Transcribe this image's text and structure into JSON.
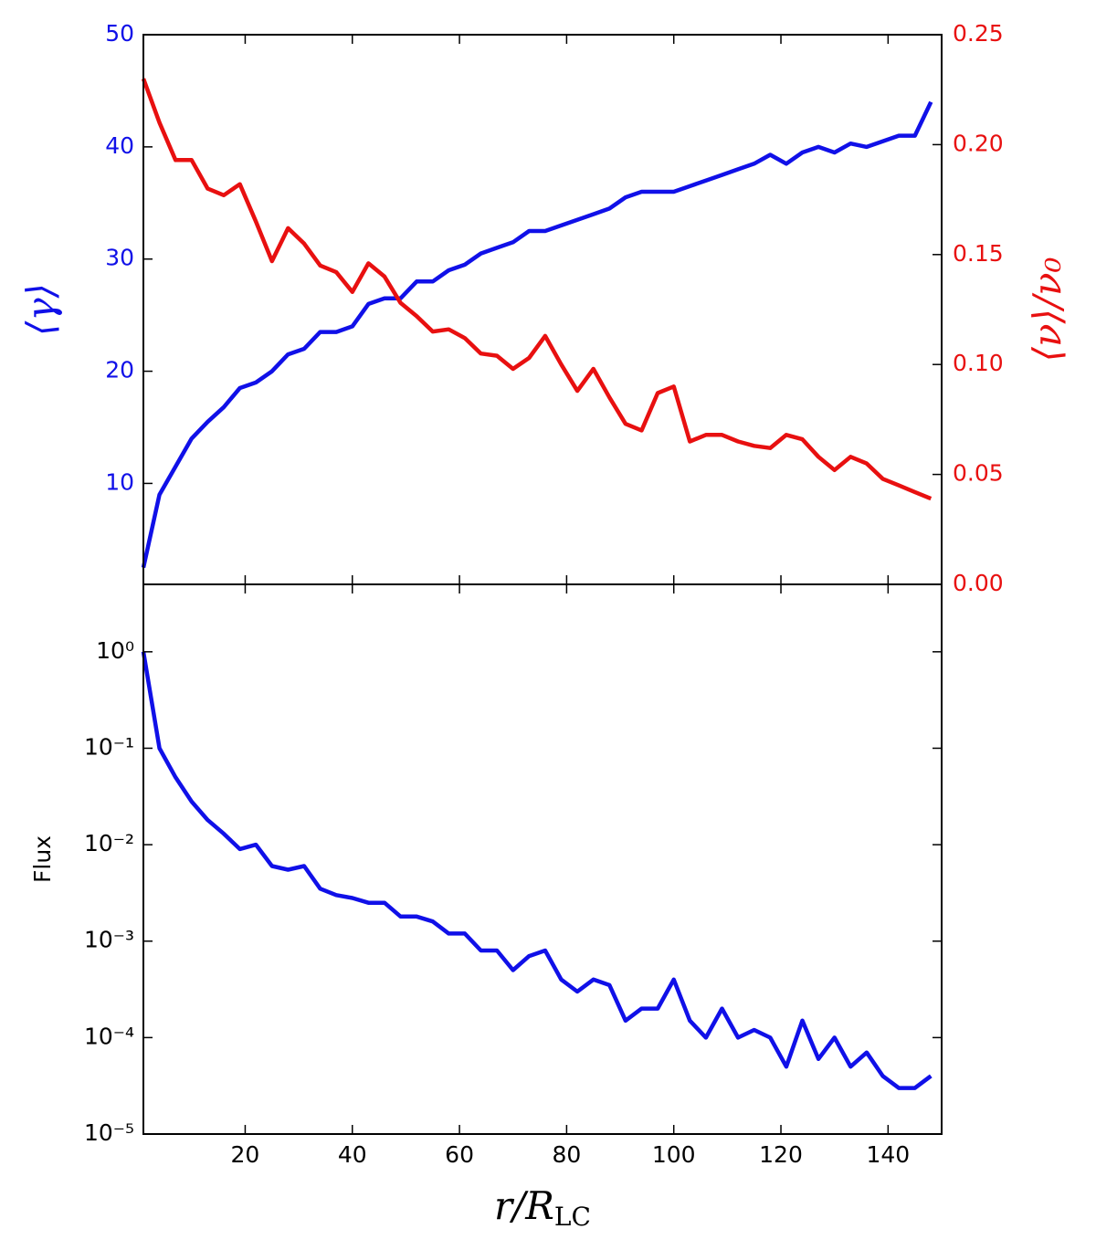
{
  "chart_data": [
    {
      "type": "line",
      "x": [
        1,
        4,
        7,
        10,
        13,
        16,
        19,
        22,
        25,
        28,
        31,
        34,
        37,
        40,
        43,
        46,
        49,
        52,
        55,
        58,
        61,
        64,
        67,
        70,
        73,
        76,
        79,
        82,
        85,
        88,
        91,
        94,
        97,
        100,
        103,
        106,
        109,
        112,
        115,
        118,
        121,
        124,
        127,
        130,
        133,
        136,
        139,
        142,
        145,
        148
      ],
      "xlim": [
        1,
        150
      ],
      "ylabel": "⟨γ⟩",
      "y2label": "⟨ν⟩/ν₀",
      "ylim": [
        1,
        50
      ],
      "yticks": [
        10,
        20,
        30,
        40,
        50
      ],
      "y2lim": [
        0,
        0.25
      ],
      "y2ticks": [
        {
          "value": 0,
          "label": "0.00"
        },
        {
          "value": 0.05,
          "label": "0.05"
        },
        {
          "value": 0.1,
          "label": "0.10"
        },
        {
          "value": 0.15,
          "label": "0.15"
        },
        {
          "value": 0.2,
          "label": "0.20"
        },
        {
          "value": 0.25,
          "label": "0.25"
        }
      ],
      "series": [
        {
          "color": "#1010e8",
          "axis": "y",
          "values": [
            2.5,
            9,
            11.5,
            14,
            15.5,
            16.8,
            18.5,
            19,
            20,
            21.5,
            22,
            23.5,
            23.5,
            24,
            26,
            26.5,
            26.5,
            28,
            28,
            29,
            29.5,
            30.5,
            31,
            31.5,
            32.5,
            32.5,
            33,
            33.5,
            34,
            34.5,
            35.5,
            36,
            36,
            36,
            36.5,
            37,
            37.5,
            38,
            38.5,
            39.3,
            38.5,
            39.5,
            40,
            39.5,
            40.3,
            40,
            40.5,
            41,
            41,
            44
          ]
        },
        {
          "color": "#e81010",
          "axis": "y2",
          "values": [
            0.23,
            0.21,
            0.193,
            0.193,
            0.18,
            0.177,
            0.182,
            0.165,
            0.147,
            0.162,
            0.155,
            0.145,
            0.142,
            0.133,
            0.146,
            0.14,
            0.128,
            0.122,
            0.115,
            0.116,
            0.112,
            0.105,
            0.104,
            0.098,
            0.103,
            0.113,
            0.1,
            0.088,
            0.098,
            0.085,
            0.073,
            0.07,
            0.087,
            0.09,
            0.065,
            0.068,
            0.068,
            0.065,
            0.063,
            0.062,
            0.068,
            0.066,
            0.058,
            0.052,
            0.058,
            0.055,
            0.048,
            0.045,
            0.042,
            0.039
          ]
        }
      ]
    },
    {
      "type": "line",
      "x": [
        1,
        4,
        7,
        10,
        13,
        16,
        19,
        22,
        25,
        28,
        31,
        34,
        37,
        40,
        43,
        46,
        49,
        52,
        55,
        58,
        61,
        64,
        67,
        70,
        73,
        76,
        79,
        82,
        85,
        88,
        91,
        94,
        97,
        100,
        103,
        106,
        109,
        112,
        115,
        118,
        121,
        124,
        127,
        130,
        133,
        136,
        139,
        142,
        145,
        148
      ],
      "xlim": [
        1,
        150
      ],
      "xticks": [
        20,
        40,
        60,
        80,
        100,
        120,
        140
      ],
      "xlabel": "r/R",
      "xlabel_subscript": "LC",
      "ylabel": "Flux",
      "log_y": true,
      "ylim": [
        1e-05,
        5
      ],
      "yticks": [
        {
          "value": 1e-05,
          "label": "10⁻⁵"
        },
        {
          "value": 0.0001,
          "label": "10⁻⁴"
        },
        {
          "value": 0.001,
          "label": "10⁻³"
        },
        {
          "value": 0.01,
          "label": "10⁻²"
        },
        {
          "value": 0.1,
          "label": "10⁻¹"
        },
        {
          "value": 1,
          "label": "10⁰"
        }
      ],
      "series": [
        {
          "color": "#1010e8",
          "axis": "y",
          "values": [
            1,
            0.1,
            0.05,
            0.028,
            0.018,
            0.013,
            0.009,
            0.01,
            0.006,
            0.0055,
            0.006,
            0.0035,
            0.003,
            0.0028,
            0.0025,
            0.0025,
            0.0018,
            0.0018,
            0.0016,
            0.0012,
            0.0012,
            0.0008,
            0.0008,
            0.0005,
            0.0007,
            0.0008,
            0.0004,
            0.0003,
            0.0004,
            0.00035,
            0.00015,
            0.0002,
            0.0002,
            0.0004,
            0.00015,
            0.0001,
            0.0002,
            0.0001,
            0.00012,
            0.0001,
            5e-05,
            0.00015,
            6e-05,
            0.0001,
            5e-05,
            7e-05,
            4e-05,
            3e-05,
            3e-05,
            4e-05
          ]
        }
      ]
    }
  ]
}
